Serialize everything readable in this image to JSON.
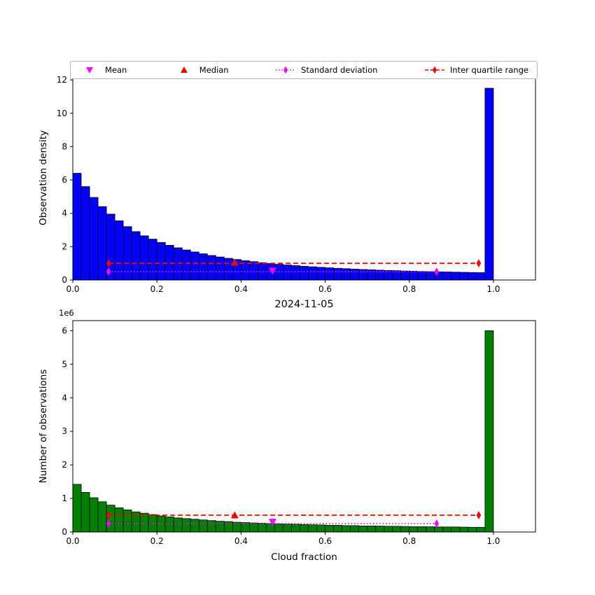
{
  "figure": {
    "title": "2024-11-05",
    "xlabel": "Cloud fraction",
    "legend": [
      {
        "label": "Mean",
        "marker": "triangle-down",
        "line": "none",
        "color": "#ff00ff"
      },
      {
        "label": "Median",
        "marker": "triangle-up",
        "line": "none",
        "color": "#ff0000"
      },
      {
        "label": "Standard deviation",
        "marker": "diamond",
        "line": "dotted",
        "color": "#ff00ff"
      },
      {
        "label": "Inter quartile range",
        "marker": "diamond",
        "line": "dashed",
        "color": "#ff0000"
      }
    ]
  },
  "chart_data": [
    {
      "type": "bar",
      "name": "observation-density-histogram",
      "ylabel": "Observation density",
      "bar_color": "#0000ff",
      "edge_color": "#000000",
      "bin_start": 0,
      "bin_width": 0.02,
      "values": [
        6.4,
        5.6,
        4.95,
        4.4,
        3.95,
        3.55,
        3.2,
        2.9,
        2.65,
        2.45,
        2.25,
        2.08,
        1.93,
        1.8,
        1.68,
        1.57,
        1.47,
        1.38,
        1.3,
        1.23,
        1.16,
        1.1,
        1.04,
        0.99,
        0.94,
        0.9,
        0.86,
        0.82,
        0.79,
        0.76,
        0.73,
        0.7,
        0.68,
        0.65,
        0.63,
        0.61,
        0.59,
        0.57,
        0.56,
        0.54,
        0.53,
        0.51,
        0.5,
        0.49,
        0.48,
        0.47,
        0.46,
        0.45,
        0.44,
        11.5
      ],
      "xlim": [
        0,
        1.1
      ],
      "ylim": [
        0,
        12.3
      ],
      "xticks": [
        0.0,
        0.2,
        0.4,
        0.6,
        0.8,
        1.0
      ],
      "xtick_labels": [
        "0.0",
        "0.2",
        "0.4",
        "0.6",
        "0.8",
        "1.0"
      ],
      "yticks": [
        0,
        2,
        4,
        6,
        8,
        10,
        12
      ],
      "ytick_labels": [
        "0",
        "2",
        "4",
        "6",
        "8",
        "10",
        "12"
      ],
      "stats": {
        "mean": {
          "x": 0.475,
          "y": 0.55
        },
        "median": {
          "x": 0.385,
          "y": 1.05
        },
        "std": {
          "x1": 0.085,
          "x2": 0.865,
          "y": 0.5
        },
        "iqr": {
          "x1": 0.085,
          "x2": 0.965,
          "y": 1.0
        }
      }
    },
    {
      "type": "bar",
      "name": "observation-count-histogram",
      "ylabel": "Number of observations",
      "offset_label": "1e6",
      "bar_color": "#008000",
      "edge_color": "#000000",
      "bin_start": 0,
      "bin_width": 0.02,
      "values": [
        1.42,
        1.18,
        1.02,
        0.9,
        0.8,
        0.72,
        0.66,
        0.6,
        0.56,
        0.52,
        0.48,
        0.45,
        0.42,
        0.4,
        0.38,
        0.36,
        0.34,
        0.32,
        0.31,
        0.29,
        0.28,
        0.27,
        0.26,
        0.25,
        0.24,
        0.235,
        0.23,
        0.22,
        0.215,
        0.21,
        0.2,
        0.2,
        0.19,
        0.19,
        0.18,
        0.18,
        0.175,
        0.17,
        0.17,
        0.165,
        0.16,
        0.16,
        0.155,
        0.15,
        0.15,
        0.15,
        0.145,
        0.14,
        0.14,
        6.0
      ],
      "xlim": [
        0,
        1.1
      ],
      "ylim": [
        0,
        6.3
      ],
      "xticks": [
        0.0,
        0.2,
        0.4,
        0.6,
        0.8,
        1.0
      ],
      "xtick_labels": [
        "0.0",
        "0.2",
        "0.4",
        "0.6",
        "0.8",
        "1.0"
      ],
      "yticks": [
        0,
        1,
        2,
        3,
        4,
        5,
        6
      ],
      "ytick_labels": [
        "0",
        "1",
        "2",
        "3",
        "4",
        "5",
        "6"
      ],
      "stats": {
        "mean": {
          "x": 0.475,
          "y": 0.3
        },
        "median": {
          "x": 0.385,
          "y": 0.5
        },
        "std": {
          "x1": 0.085,
          "x2": 0.865,
          "y": 0.25
        },
        "iqr": {
          "x1": 0.085,
          "x2": 0.965,
          "y": 0.5
        }
      }
    }
  ]
}
